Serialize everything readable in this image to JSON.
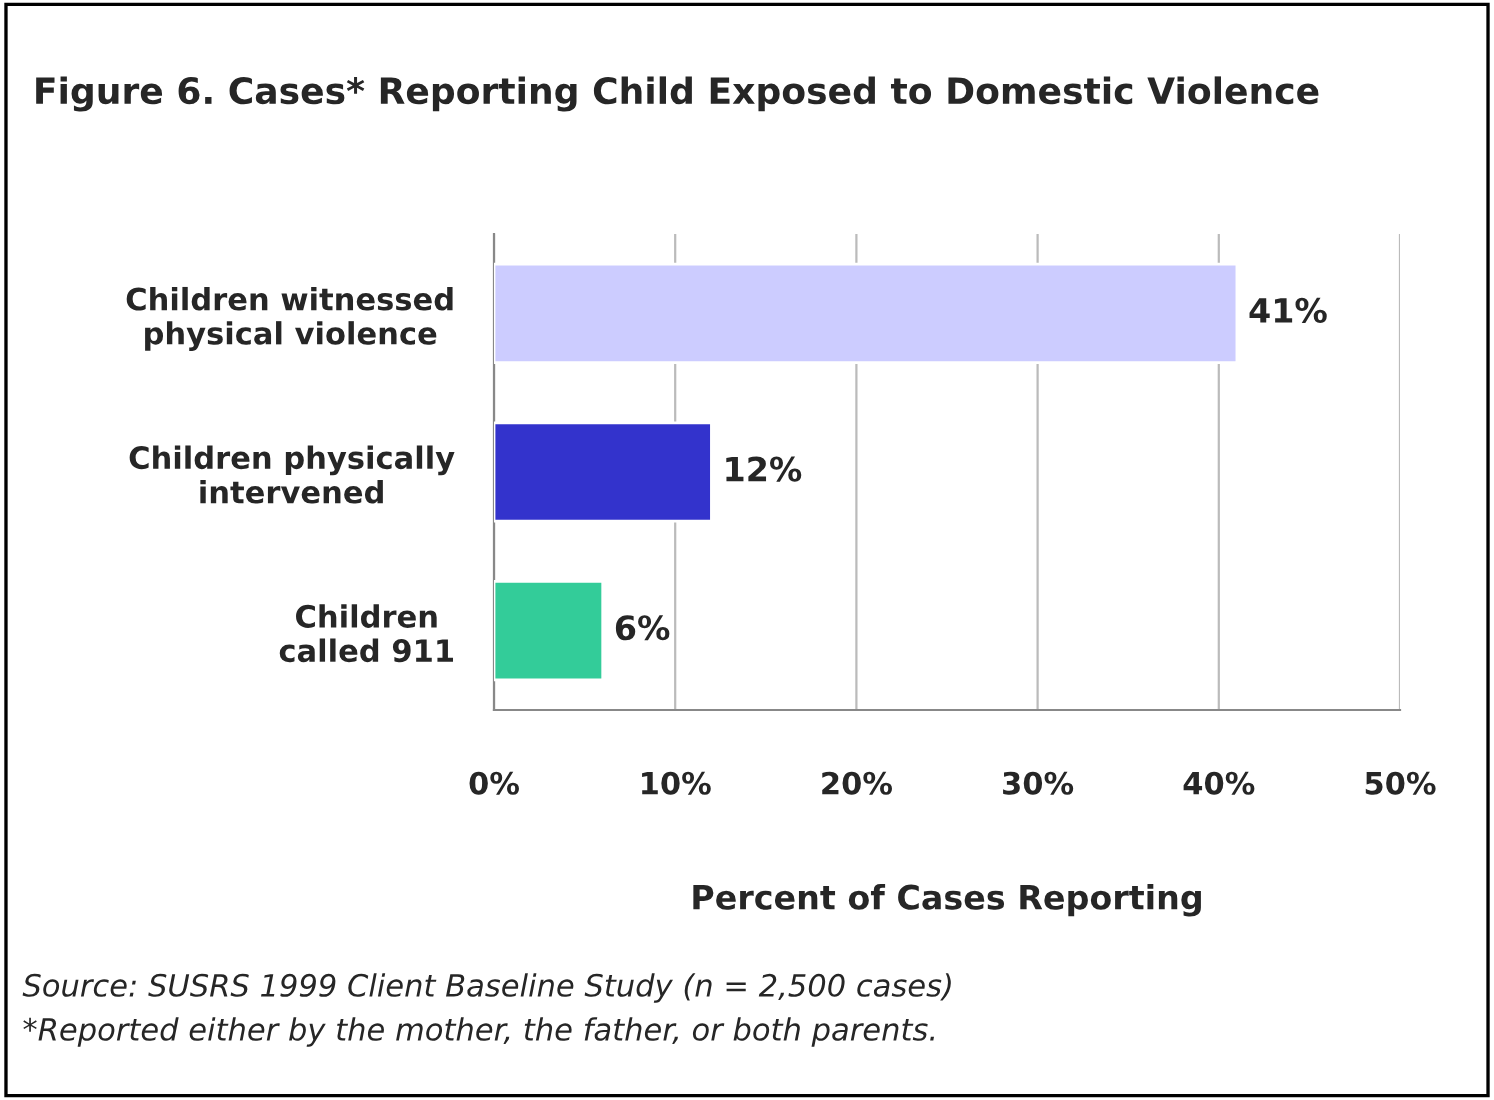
{
  "chart_data": {
    "type": "bar",
    "orientation": "horizontal",
    "title": "Figure 6. Cases* Reporting Child Exposed to Domestic Violence",
    "categories": [
      "Children witnessed\nphysical violence",
      "Children physically\nintervened",
      "Children\ncalled 911"
    ],
    "values": [
      41,
      12,
      6
    ],
    "colors": [
      "#ccccff",
      "#3333cc",
      "#33cc99"
    ],
    "value_labels": [
      "41%",
      "12%",
      "6%"
    ],
    "xlabel": "Percent of Cases Reporting",
    "xlim": [
      0,
      50
    ],
    "xticks": [
      {
        "value": 0,
        "label": "0%"
      },
      {
        "value": 10,
        "label": "10%"
      },
      {
        "value": 20,
        "label": "20%"
      },
      {
        "value": 30,
        "label": "30%"
      },
      {
        "value": 40,
        "label": "40%"
      },
      {
        "value": 50,
        "label": "50%"
      }
    ],
    "grid": "x",
    "legend": false,
    "annotations": [
      "Source: SUSRS 1999 Client Baseline Study (n = 2,500 cases)",
      "*Reported either by the mother, the father, or both parents."
    ]
  }
}
